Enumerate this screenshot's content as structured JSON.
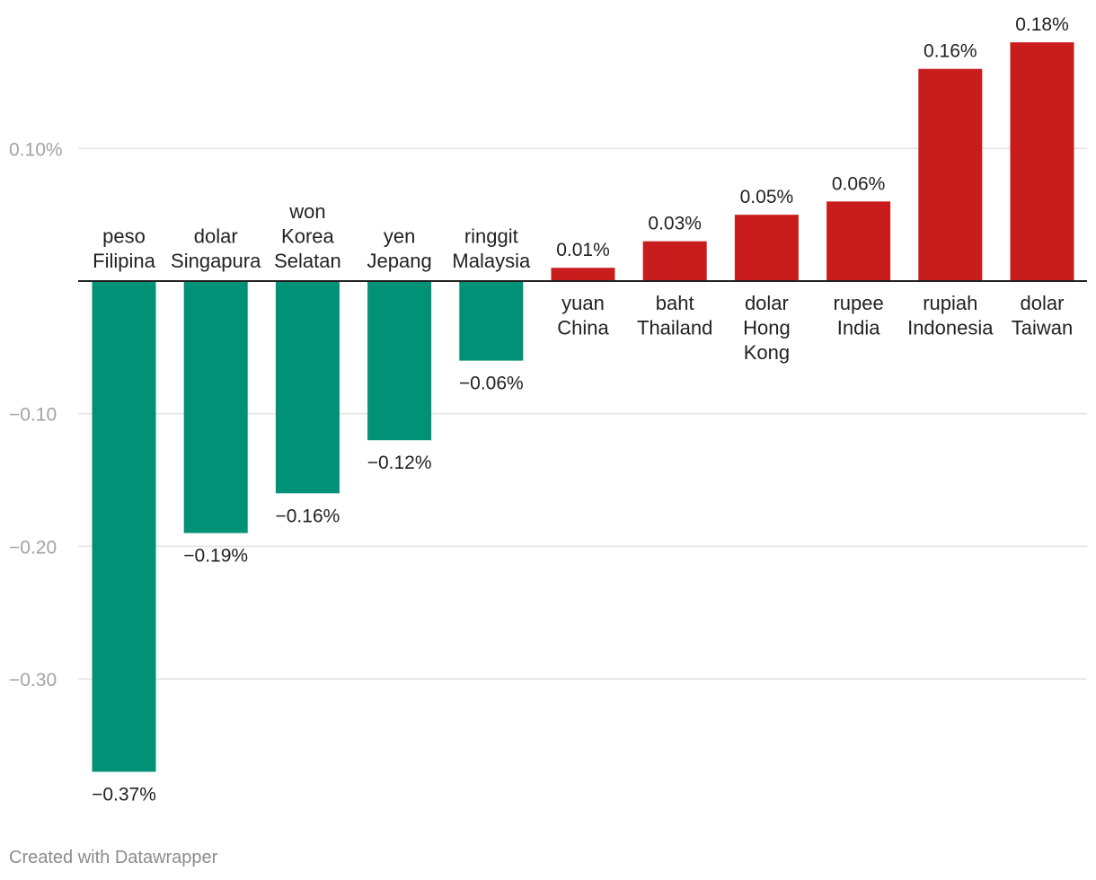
{
  "chart_data": {
    "type": "bar",
    "categories": [
      [
        "peso",
        "Filipina"
      ],
      [
        "dolar",
        "Singapura"
      ],
      [
        "won",
        "Korea",
        "Selatan"
      ],
      [
        "yen",
        "Jepang"
      ],
      [
        "ringgit",
        "Malaysia"
      ],
      [
        "yuan",
        "China"
      ],
      [
        "baht",
        "Thailand"
      ],
      [
        "dolar",
        "Hong",
        "Kong"
      ],
      [
        "rupee",
        "India"
      ],
      [
        "rupiah",
        "Indonesia"
      ],
      [
        "dolar",
        "Taiwan"
      ]
    ],
    "values": [
      -0.37,
      -0.19,
      -0.16,
      -0.12,
      -0.06,
      0.01,
      0.03,
      0.05,
      0.06,
      0.16,
      0.18
    ],
    "value_labels": [
      "−0.37%",
      "−0.19%",
      "−0.16%",
      "−0.12%",
      "−0.06%",
      "0.01%",
      "0.03%",
      "0.05%",
      "0.06%",
      "0.16%",
      "0.18%"
    ],
    "y_ticks": [
      0.1,
      -0.1,
      -0.2,
      -0.3
    ],
    "y_tick_labels": [
      "0.10%",
      "−0.10",
      "−0.20",
      "−0.30"
    ],
    "ylim": [
      -0.37,
      0.18
    ],
    "grid": true,
    "colors": {
      "negative": "#009177",
      "positive": "#c91d1d",
      "grid": "#e2e2e2",
      "axis": "#222222"
    }
  },
  "footer": {
    "credit": "Created with Datawrapper"
  }
}
